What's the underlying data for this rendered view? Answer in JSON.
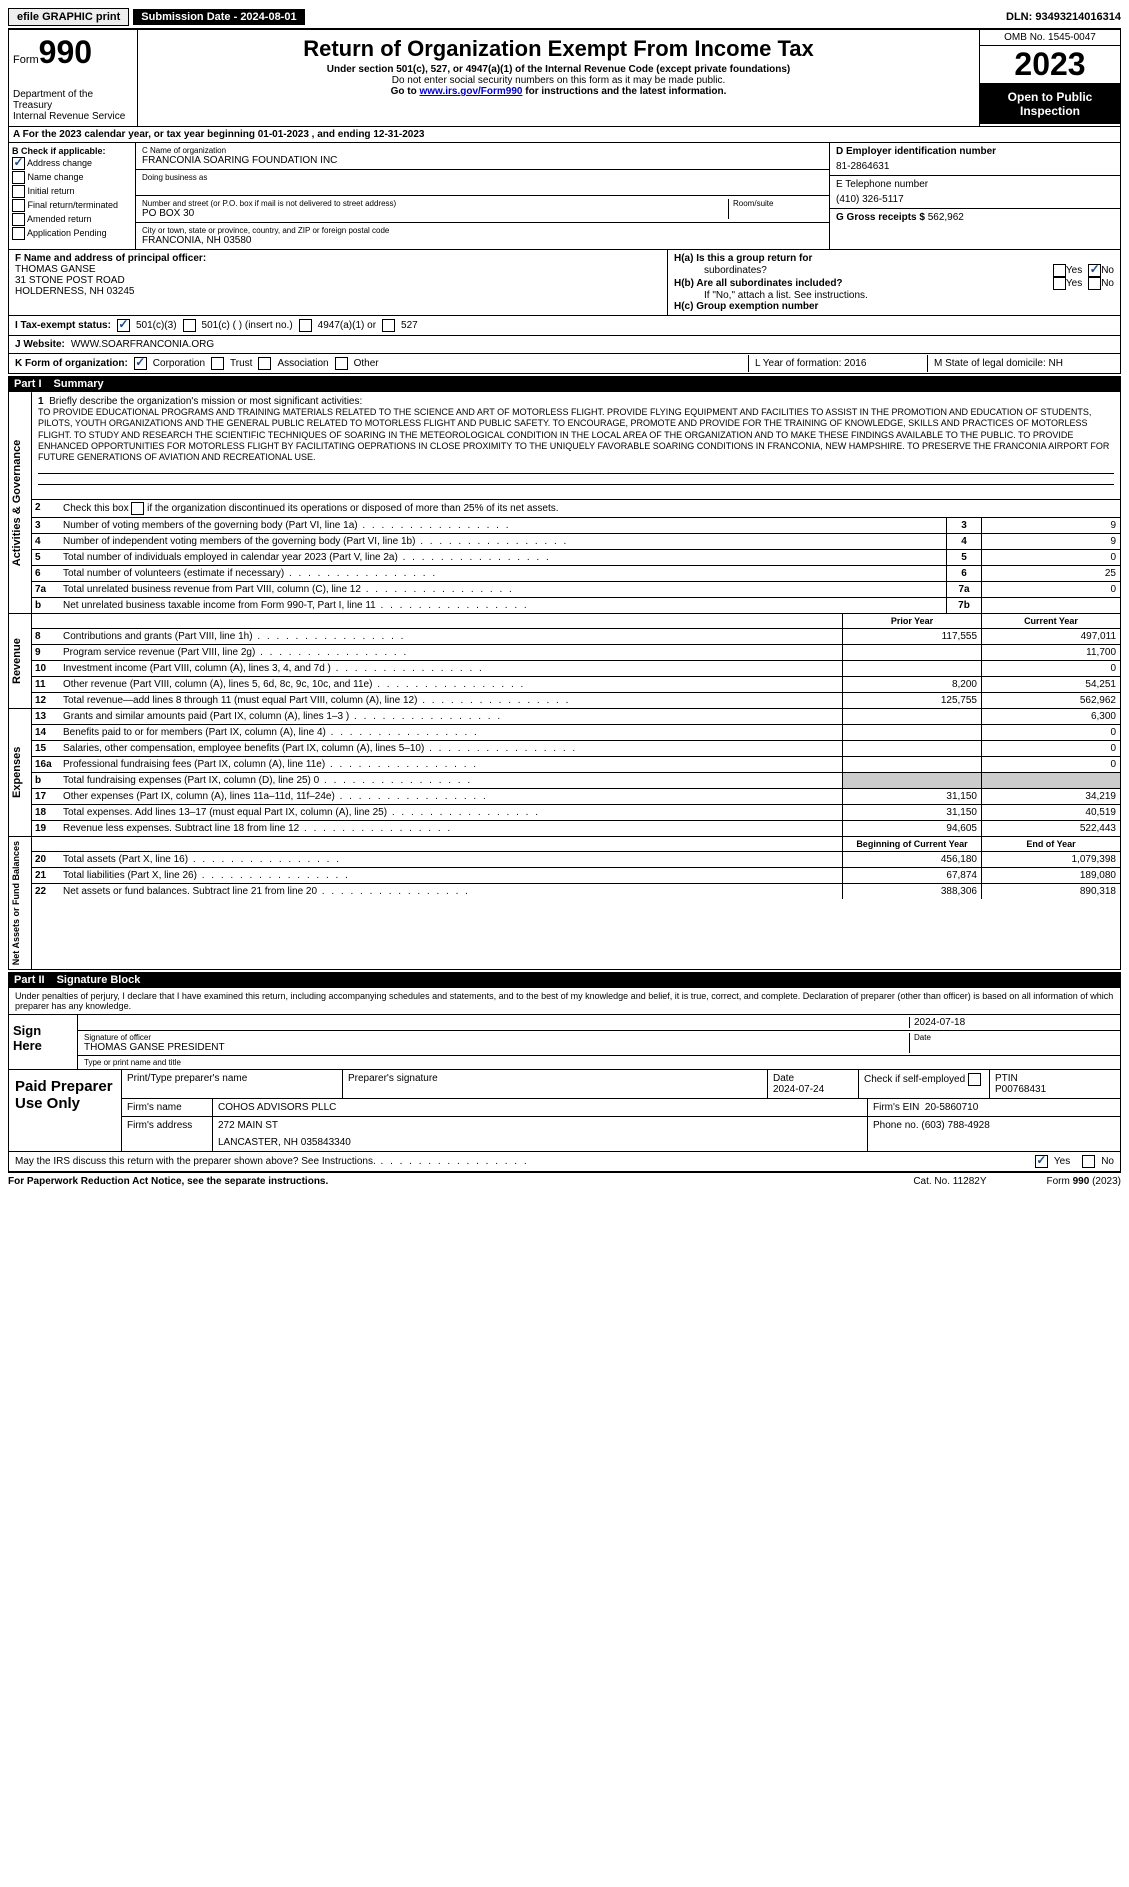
{
  "topbar": {
    "efile": "efile GRAPHIC print",
    "submission": "Submission Date - 2024-08-01",
    "dln": "DLN: 93493214016314"
  },
  "header": {
    "form_prefix": "Form",
    "form_num": "990",
    "title": "Return of Organization Exempt From Income Tax",
    "sub1": "Under section 501(c), 527, or 4947(a)(1) of the Internal Revenue Code (except private foundations)",
    "sub2": "Do not enter social security numbers on this form as it may be made public.",
    "goto_pre": "Go to ",
    "goto_link": "www.irs.gov/Form990",
    "goto_post": " for instructions and the latest information.",
    "dept": "Department of the Treasury\nInternal Revenue Service",
    "omb": "OMB No. 1545-0047",
    "year": "2023",
    "open": "Open to Public Inspection"
  },
  "rowA": "A For the 2023 calendar year, or tax year beginning 01-01-2023   , and ending 12-31-2023",
  "colB": {
    "title": "B Check if applicable:",
    "items": [
      "Address change",
      "Name change",
      "Initial return",
      "Final return/terminated",
      "Amended return",
      "Application Pending"
    ],
    "checked_idx": 0
  },
  "colC": {
    "name_lbl": "C Name of organization",
    "name": "FRANCONIA SOARING FOUNDATION INC",
    "dba_lbl": "Doing business as",
    "addr_lbl": "Number and street (or P.O. box if mail is not delivered to street address)",
    "addr": "PO BOX 30",
    "room_lbl": "Room/suite",
    "city_lbl": "City or town, state or province, country, and ZIP or foreign postal code",
    "city": "FRANCONIA, NH  03580"
  },
  "colD": {
    "ein_lbl": "D Employer identification number",
    "ein": "81-2864631",
    "tel_lbl": "E Telephone number",
    "tel": "(410) 326-5117",
    "gross_lbl": "G Gross receipts $",
    "gross": "562,962"
  },
  "colF": {
    "lbl": "F Name and address of principal officer:",
    "l1": "THOMAS GANSE",
    "l2": "31 STONE POST ROAD",
    "l3": "HOLDERNESS, NH  03245"
  },
  "colH": {
    "a": "H(a)  Is this a group return for",
    "a2": "subordinates?",
    "b": "H(b)  Are all subordinates included?",
    "bnote": "If \"No,\" attach a list. See instructions.",
    "c": "H(c)  Group exemption number"
  },
  "rowI": {
    "lbl": "I   Tax-exempt status:",
    "o1": "501(c)(3)",
    "o2": "501(c) (  ) (insert no.)",
    "o3": "4947(a)(1) or",
    "o4": "527"
  },
  "rowJ": {
    "lbl": "J   Website:",
    "val": "WWW.SOARFRANCONIA.ORG"
  },
  "rowK": {
    "lbl": "K Form of organization:",
    "o1": "Corporation",
    "o2": "Trust",
    "o3": "Association",
    "o4": "Other"
  },
  "rowL": {
    "l": "L Year of formation: 2016",
    "m": "M State of legal domicile: NH"
  },
  "part1": {
    "pt": "Part I",
    "ttl": "Summary"
  },
  "mission": {
    "lbl": "Briefly describe the organization's mission or most significant activities:",
    "txt": "TO PROVIDE EDUCATIONAL PROGRAMS AND TRAINING MATERIALS RELATED TO THE SCIENCE AND ART OF MOTORLESS FLIGHT. PROVIDE FLYING EQUIPMENT AND FACILITIES TO ASSIST IN THE PROMOTION AND EDUCATION OF STUDENTS, PILOTS, YOUTH ORGANIZATIONS AND THE GENERAL PUBLIC RELATED TO MOTORLESS FLIGHT AND PUBLIC SAFETY. TO ENCOURAGE, PROMOTE AND PROVIDE FOR THE TRAINING OF KNOWLEDGE, SKILLS AND PRACTICES OF MOTORLESS FLIGHT. TO STUDY AND RESEARCH THE SCIENTIFIC TECHNIQUES OF SOARING IN THE METEOROLOGICAL CONDITION IN THE LOCAL AREA OF THE ORGANIZATION AND TO MAKE THESE FINDINGS AVAILABLE TO THE PUBLIC. TO PROVIDE ENHANCED OPPORTUNITIES FOR MOTORLESS FLIGHT BY FACILITATING OEPRATIONS IN CLOSE PROXIMITY TO THE UNIQUELY FAVORABLE SOARING CONDITIONS IN FRANCONIA, NEW HAMPSHIRE. TO PRESERVE THE FRANCONIA AIRPORT FOR FUTURE GENERATIONS OF AVIATION AND RECREATIONAL USE."
  },
  "gov_rows": [
    {
      "n": "2",
      "t": "Check this box      if the organization discontinued its operations or disposed of more than 25% of its net assets."
    },
    {
      "n": "3",
      "t": "Number of voting members of the governing body (Part VI, line 1a)",
      "box": "3",
      "v": "9"
    },
    {
      "n": "4",
      "t": "Number of independent voting members of the governing body (Part VI, line 1b)",
      "box": "4",
      "v": "9"
    },
    {
      "n": "5",
      "t": "Total number of individuals employed in calendar year 2023 (Part V, line 2a)",
      "box": "5",
      "v": "0"
    },
    {
      "n": "6",
      "t": "Total number of volunteers (estimate if necessary)",
      "box": "6",
      "v": "25"
    },
    {
      "n": "7a",
      "t": "Total unrelated business revenue from Part VIII, column (C), line 12",
      "box": "7a",
      "v": "0"
    },
    {
      "n": "b",
      "t": "Net unrelated business taxable income from Form 990-T, Part I, line 11",
      "box": "7b",
      "v": ""
    }
  ],
  "rev_hdr": {
    "py": "Prior Year",
    "cy": "Current Year"
  },
  "rev_rows": [
    {
      "n": "8",
      "t": "Contributions and grants (Part VIII, line 1h)",
      "py": "117,555",
      "cy": "497,011"
    },
    {
      "n": "9",
      "t": "Program service revenue (Part VIII, line 2g)",
      "py": "",
      "cy": "11,700"
    },
    {
      "n": "10",
      "t": "Investment income (Part VIII, column (A), lines 3, 4, and 7d )",
      "py": "",
      "cy": "0"
    },
    {
      "n": "11",
      "t": "Other revenue (Part VIII, column (A), lines 5, 6d, 8c, 9c, 10c, and 11e)",
      "py": "8,200",
      "cy": "54,251"
    },
    {
      "n": "12",
      "t": "Total revenue—add lines 8 through 11 (must equal Part VIII, column (A), line 12)",
      "py": "125,755",
      "cy": "562,962"
    }
  ],
  "exp_rows": [
    {
      "n": "13",
      "t": "Grants and similar amounts paid (Part IX, column (A), lines 1–3 )",
      "py": "",
      "cy": "6,300"
    },
    {
      "n": "14",
      "t": "Benefits paid to or for members (Part IX, column (A), line 4)",
      "py": "",
      "cy": "0"
    },
    {
      "n": "15",
      "t": "Salaries, other compensation, employee benefits (Part IX, column (A), lines 5–10)",
      "py": "",
      "cy": "0"
    },
    {
      "n": "16a",
      "t": "Professional fundraising fees (Part IX, column (A), line 11e)",
      "py": "",
      "cy": "0"
    },
    {
      "n": "b",
      "t": "Total fundraising expenses (Part IX, column (D), line 25) 0",
      "py": "shade",
      "cy": "shade"
    },
    {
      "n": "17",
      "t": "Other expenses (Part IX, column (A), lines 11a–11d, 11f–24e)",
      "py": "31,150",
      "cy": "34,219"
    },
    {
      "n": "18",
      "t": "Total expenses. Add lines 13–17 (must equal Part IX, column (A), line 25)",
      "py": "31,150",
      "cy": "40,519"
    },
    {
      "n": "19",
      "t": "Revenue less expenses. Subtract line 18 from line 12",
      "py": "94,605",
      "cy": "522,443"
    }
  ],
  "na_hdr": {
    "py": "Beginning of Current Year",
    "cy": "End of Year"
  },
  "na_rows": [
    {
      "n": "20",
      "t": "Total assets (Part X, line 16)",
      "py": "456,180",
      "cy": "1,079,398"
    },
    {
      "n": "21",
      "t": "Total liabilities (Part X, line 26)",
      "py": "67,874",
      "cy": "189,080"
    },
    {
      "n": "22",
      "t": "Net assets or fund balances. Subtract line 21 from line 20",
      "py": "388,306",
      "cy": "890,318"
    }
  ],
  "part2": {
    "pt": "Part II",
    "ttl": "Signature Block"
  },
  "sig": {
    "intro": "Under penalties of perjury, I declare that I have examined this return, including accompanying schedules and statements, and to the best of my knowledge and belief, it is true, correct, and complete. Declaration of preparer (other than officer) is based on all information of which preparer has any knowledge.",
    "here": "Sign Here",
    "sig_lbl": "Signature of officer",
    "date_lbl": "Date",
    "date": "2024-07-18",
    "name": "THOMAS GANSE PRESIDENT",
    "name_lbl": "Type or print name and title"
  },
  "prep": {
    "title": "Paid Preparer Use Only",
    "h1": "Print/Type preparer's name",
    "h2": "Preparer's signature",
    "h3": "Date",
    "h3v": "2024-07-24",
    "h4": "Check      if self-employed",
    "h5": "PTIN",
    "h5v": "P00768431",
    "firm_lbl": "Firm's name",
    "firm": "COHOS ADVISORS PLLC",
    "ein_lbl": "Firm's EIN",
    "ein": "20-5860710",
    "addr_lbl": "Firm's address",
    "addr1": "272 MAIN ST",
    "addr2": "LANCASTER, NH  035843340",
    "phone_lbl": "Phone no.",
    "phone": "(603) 788-4928"
  },
  "discuss": "May the IRS discuss this return with the preparer shown above? See Instructions.",
  "foot": {
    "l": "For Paperwork Reduction Act Notice, see the separate instructions.",
    "c": "Cat. No. 11282Y",
    "r": "Form 990 (2023)"
  },
  "vtabs": {
    "gov": "Activities & Governance",
    "rev": "Revenue",
    "exp": "Expenses",
    "na": "Net Assets or Fund Balances"
  }
}
